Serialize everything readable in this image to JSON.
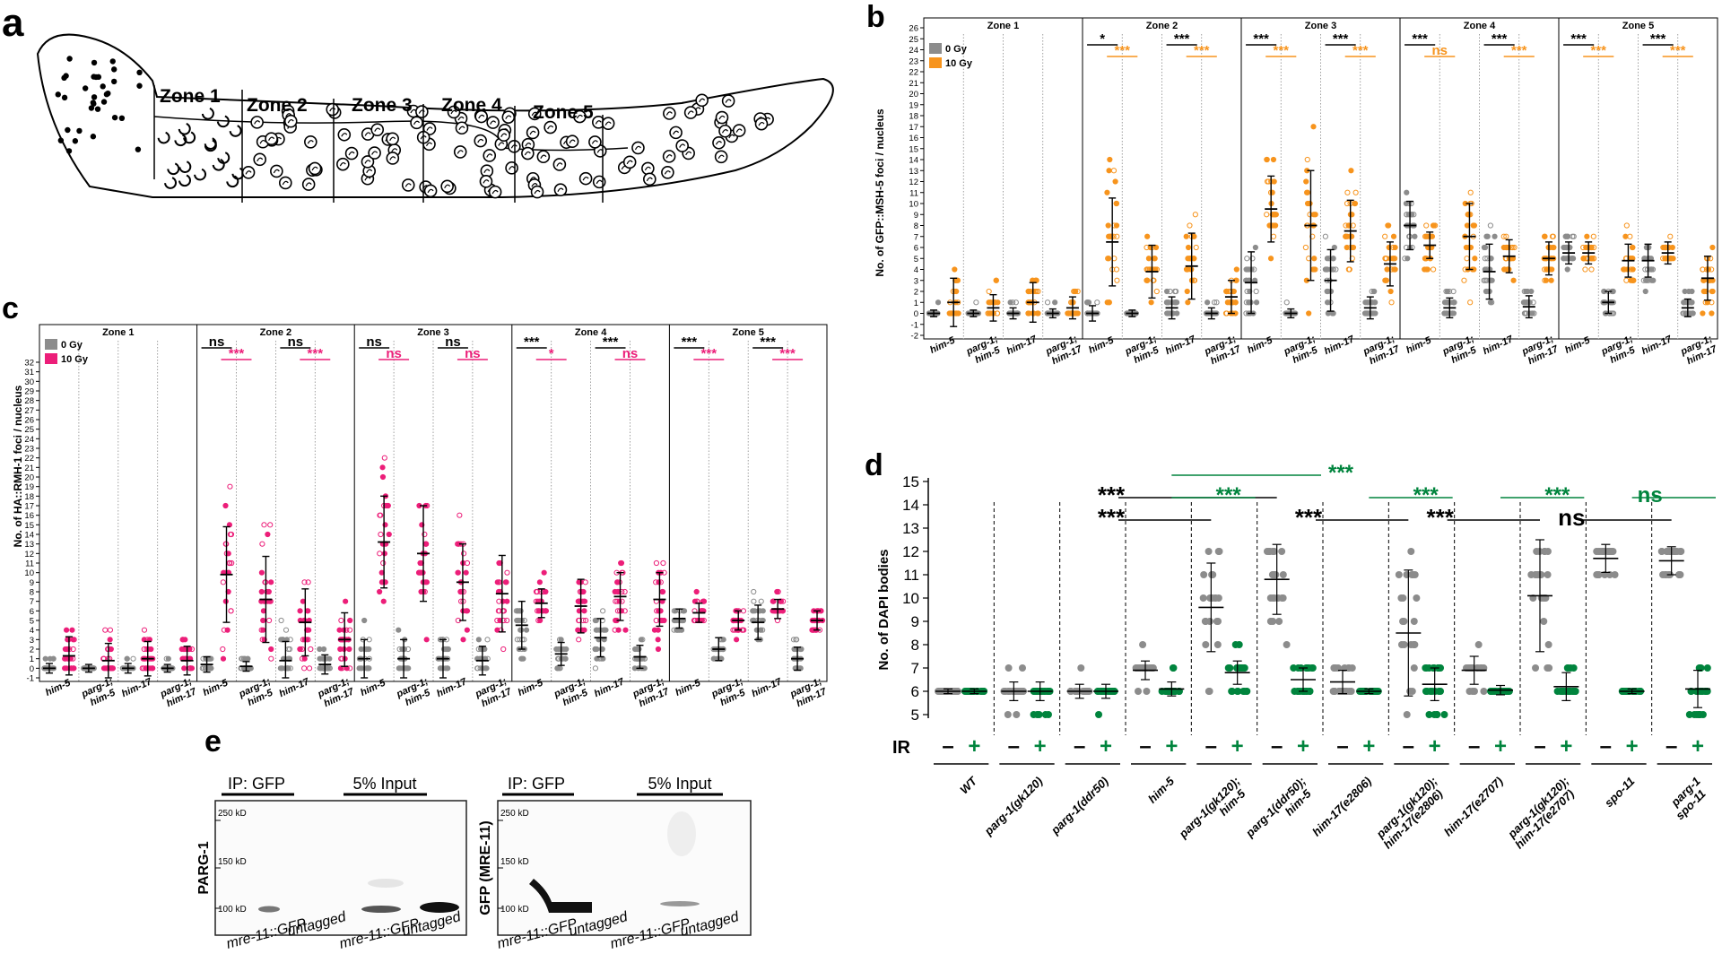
{
  "panels": {
    "a": {
      "letter": "a",
      "zones": [
        "Zone 1",
        "Zone 2",
        "Zone 3",
        "Zone 4",
        "Zone 5"
      ]
    },
    "b": {
      "letter": "b",
      "ylabel": "No. of GFP::MSH-5 foci / nucleus",
      "yticks": [
        "26",
        "25",
        "24",
        "23",
        "22",
        "21",
        "20",
        "19",
        "18",
        "17",
        "16",
        "15",
        "14",
        "13",
        "12",
        "11",
        "10",
        "9",
        "8",
        "7",
        "6",
        "5",
        "4",
        "3",
        "2",
        "1",
        "0",
        "-1",
        "-2"
      ],
      "legend": [
        {
          "label": "0 Gy",
          "color": "#8c8c8c"
        },
        {
          "label": "10 Gy",
          "color": "#f7941d"
        }
      ],
      "zones": [
        "Zone 1",
        "Zone 2",
        "Zone 3",
        "Zone 4",
        "Zone 5"
      ],
      "genotypes": [
        "him-5",
        "parg-1;",
        "him-5",
        "him-17",
        "parg-1;",
        "him-17"
      ],
      "sig": {
        "z2": [
          "*",
          "***",
          "***",
          "***"
        ],
        "z3": [
          "***",
          "***",
          "***",
          "***"
        ],
        "z4": [
          "***",
          "ns",
          "***",
          "***"
        ],
        "z5": [
          "***",
          "***",
          "***",
          "***"
        ]
      },
      "colors": {
        "ctrl": "#8c8c8c",
        "irr": "#f7941d"
      }
    },
    "c": {
      "letter": "c",
      "ylabel": "No. of HA::RMH-1 foci / nucleus",
      "yticks": [
        "32",
        "31",
        "30",
        "29",
        "28",
        "27",
        "26",
        "25",
        "24",
        "23",
        "22",
        "21",
        "20",
        "19",
        "18",
        "17",
        "16",
        "15",
        "14",
        "13",
        "12",
        "11",
        "10",
        "9",
        "8",
        "7",
        "6",
        "5",
        "4",
        "3",
        "2",
        "1",
        "0",
        "-1"
      ],
      "legend": [
        {
          "label": "0 Gy",
          "color": "#8c8c8c"
        },
        {
          "label": "10 Gy",
          "color": "#ec1e79"
        }
      ],
      "zones": [
        "Zone 1",
        "Zone 2",
        "Zone 3",
        "Zone 4",
        "Zone 5"
      ],
      "genotypes": [
        "him-5",
        "parg-1;",
        "him-5",
        "him-17",
        "parg-1;",
        "him-17"
      ],
      "sig": {
        "z2": [
          "ns",
          "***",
          "ns",
          "***"
        ],
        "z3": [
          "ns",
          "ns",
          "ns",
          "ns"
        ],
        "z4": [
          "***",
          "*",
          "***",
          "ns"
        ],
        "z5": [
          "***",
          "***",
          "***",
          "***"
        ]
      },
      "colors": {
        "ctrl": "#8c8c8c",
        "irr": "#ec1e79"
      }
    },
    "d": {
      "letter": "d",
      "ylabel": "No. of DAPI bodies",
      "yticks": [
        "15",
        "14",
        "13",
        "12",
        "11",
        "10",
        "9",
        "8",
        "7",
        "6",
        "5"
      ],
      "ir_label": "IR",
      "minus": "–",
      "plus": "+",
      "groups": [
        [
          "WT"
        ],
        [
          "parg-1(gk120)"
        ],
        [
          "parg-1(ddr50)"
        ],
        [
          "him-5"
        ],
        [
          "parg-1(gk120);",
          "him-5"
        ],
        [
          "parg-1(ddr50);",
          "him-5"
        ],
        [
          "him-17(e2806)"
        ],
        [
          "parg-1(gk120);",
          "him-17(e2806)"
        ],
        [
          "him-17(e2707)"
        ],
        [
          "parg-1(gk120);",
          "him-17(e2707)"
        ],
        [
          "spo-11"
        ],
        [
          "parg-1",
          "spo-11"
        ]
      ],
      "sig_black": [
        "***",
        "***",
        "***",
        "***",
        "ns"
      ],
      "sig_green": [
        "***",
        "***",
        "***",
        "***",
        "ns"
      ],
      "colors": {
        "ctrl": "#8c8c8c",
        "irr": "#00843d"
      }
    },
    "e": {
      "letter": "e",
      "blot1": {
        "ylabel": "PARG-1",
        "headers": [
          "IP: GFP",
          "5% Input"
        ],
        "markers": [
          "250 kD",
          "150 kD",
          "100 kD"
        ],
        "lanes": [
          "mre-11::GFP",
          "untagged",
          "mre-11::GFP",
          "untagged"
        ]
      },
      "blot2": {
        "ylabel": "GFP (MRE-11)",
        "headers": [
          "IP: GFP",
          "5% Input"
        ],
        "markers": [
          "250 kD",
          "150 kD",
          "100 kD"
        ],
        "lanes": [
          "mre-11::GFP",
          "untagged",
          "mre-11::GFP",
          "untagged"
        ]
      }
    }
  }
}
